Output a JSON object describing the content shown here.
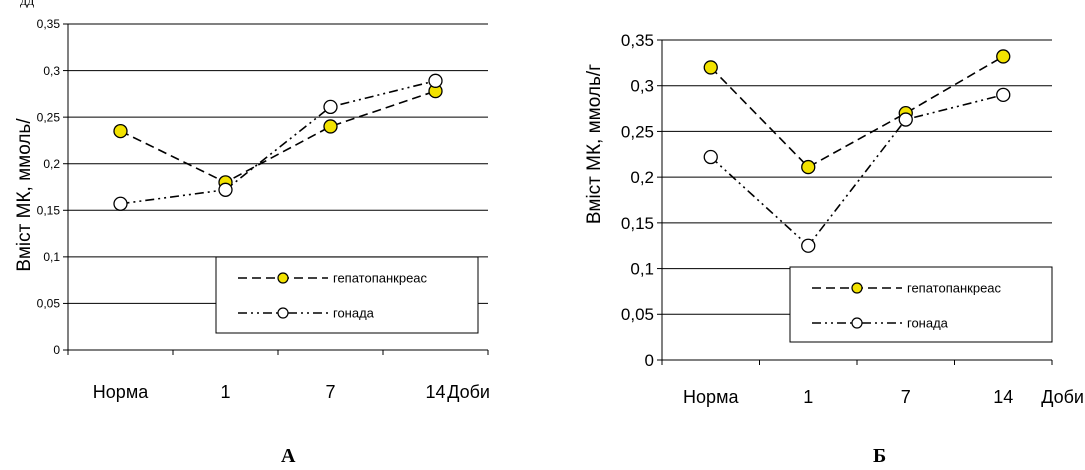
{
  "top_fragment": "дд",
  "chart_data": [
    {
      "type": "line",
      "panel_label": "А",
      "ylabel": "Вміст МК, ммоль/",
      "xlabel": "Доби",
      "categories": [
        "Норма",
        "1",
        "7",
        "14"
      ],
      "ylim": [
        0,
        0.35
      ],
      "yticks": [
        "0",
        "0,05",
        "0,1",
        "0,15",
        "0,2",
        "0,25",
        "0,3",
        "0,35"
      ],
      "grid": true,
      "legend_position": "bottom-right",
      "series": [
        {
          "name": "гепатопанкреас",
          "values": [
            0.235,
            0.18,
            0.24,
            0.278
          ],
          "marker": "filled-circle",
          "dash": "dashed",
          "color": "#f2e200"
        },
        {
          "name": "гонада",
          "values": [
            0.157,
            0.172,
            0.261,
            0.289
          ],
          "marker": "open-circle",
          "dash": "dash-dot-dot",
          "color": "#ffffff"
        }
      ]
    },
    {
      "type": "line",
      "panel_label": "Б",
      "ylabel": "Вміст МК, ммоль/г",
      "xlabel": "Доби",
      "categories": [
        "Норма",
        "1",
        "7",
        "14"
      ],
      "ylim": [
        0,
        0.35
      ],
      "yticks": [
        "0",
        "0,05",
        "0,1",
        "0,15",
        "0,2",
        "0,25",
        "0,3",
        "0,35"
      ],
      "grid": true,
      "legend_position": "bottom-right",
      "series": [
        {
          "name": "гепатопанкреас",
          "values": [
            0.32,
            0.211,
            0.27,
            0.332
          ],
          "marker": "filled-circle",
          "dash": "dashed",
          "color": "#f2e200"
        },
        {
          "name": "гонада",
          "values": [
            0.222,
            0.125,
            0.263,
            0.29
          ],
          "marker": "open-circle",
          "dash": "dash-dot-dot",
          "color": "#ffffff"
        }
      ]
    }
  ]
}
